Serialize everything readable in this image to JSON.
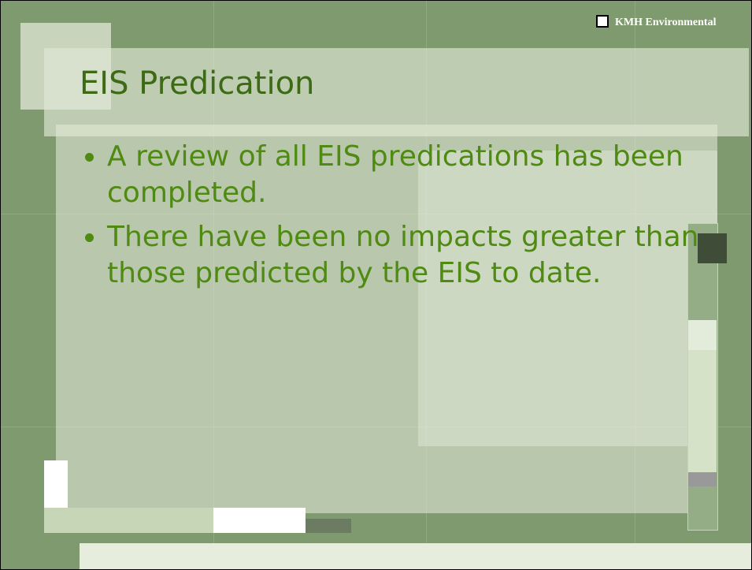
{
  "logo": {
    "text": "KMH Environmental"
  },
  "slide": {
    "title": "EIS Predication",
    "bullets": [
      "A review of all EIS predications has been completed.",
      "There have been no impacts greater than those predicted by the EIS to date."
    ]
  }
}
